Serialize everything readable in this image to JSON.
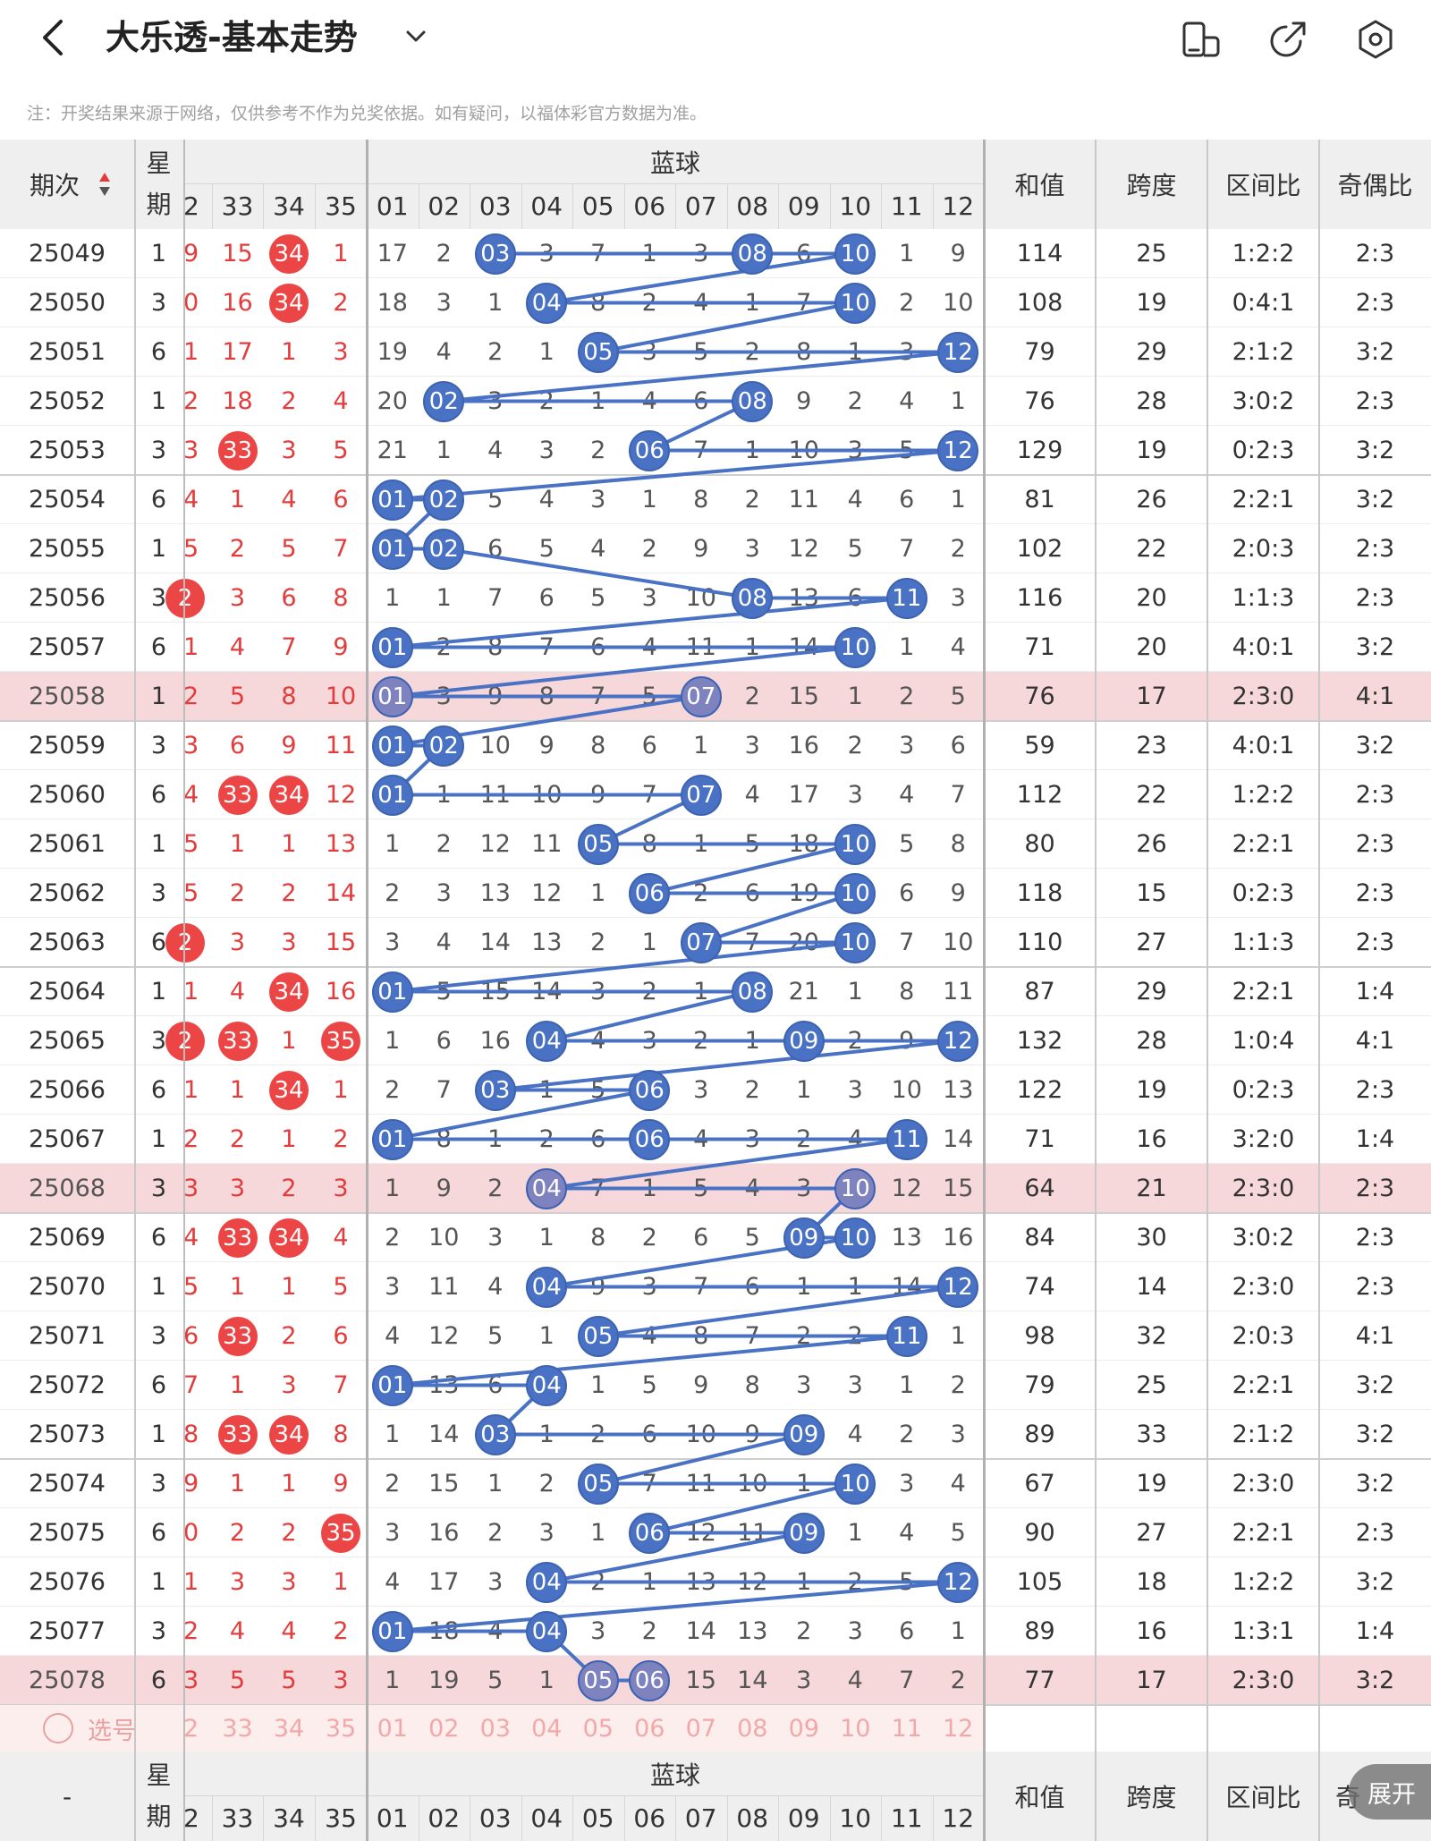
{
  "header": {
    "title": "大乐透-基本走势",
    "icons": [
      "back-icon",
      "chevron-down-icon",
      "phone-rotate-icon",
      "share-icon",
      "settings-icon"
    ]
  },
  "note": "注：开奖结果来源于网络，仅供参考不作为兑奖依据。如有疑问，以福体彩官方数据为准。",
  "columns": {
    "period": "期次",
    "week": "星期",
    "blue_group": "蓝球",
    "sum": "和值",
    "span": "跨度",
    "zone_ratio": "区间比",
    "odd_even": "奇偶比",
    "odd_even_partial": "奇",
    "red_numbers": [
      "2",
      "33",
      "34",
      "35"
    ],
    "blue_numbers": [
      "01",
      "02",
      "03",
      "04",
      "05",
      "06",
      "07",
      "08",
      "09",
      "10",
      "11",
      "12"
    ]
  },
  "rows": [
    {
      "period": "25049",
      "week": "1",
      "red": [
        "9",
        "15",
        "34",
        "1"
      ],
      "blue": [
        "17",
        "2",
        "03",
        "3",
        "7",
        "1",
        "3",
        "08",
        "6",
        "10",
        "1",
        "9"
      ],
      "sum": "114",
      "span": "25",
      "zone": "1:2:2",
      "oe": "2:3"
    },
    {
      "period": "25050",
      "week": "3",
      "red": [
        "0",
        "16",
        "34",
        "2"
      ],
      "blue": [
        "18",
        "3",
        "1",
        "04",
        "8",
        "2",
        "4",
        "1",
        "7",
        "10",
        "2",
        "10"
      ],
      "sum": "108",
      "span": "19",
      "zone": "0:4:1",
      "oe": "2:3"
    },
    {
      "period": "25051",
      "week": "6",
      "red": [
        "1",
        "17",
        "1",
        "3"
      ],
      "blue": [
        "19",
        "4",
        "2",
        "1",
        "05",
        "3",
        "5",
        "2",
        "8",
        "1",
        "3",
        "12"
      ],
      "sum": "79",
      "span": "29",
      "zone": "2:1:2",
      "oe": "3:2"
    },
    {
      "period": "25052",
      "week": "1",
      "red": [
        "2",
        "18",
        "2",
        "4"
      ],
      "blue": [
        "20",
        "02",
        "3",
        "2",
        "1",
        "4",
        "6",
        "08",
        "9",
        "2",
        "4",
        "1"
      ],
      "sum": "76",
      "span": "28",
      "zone": "3:0:2",
      "oe": "2:3"
    },
    {
      "period": "25053",
      "week": "3",
      "red": [
        "3",
        "33",
        "3",
        "5"
      ],
      "blue": [
        "21",
        "1",
        "4",
        "3",
        "2",
        "06",
        "7",
        "1",
        "10",
        "3",
        "5",
        "12"
      ],
      "sum": "129",
      "span": "19",
      "zone": "0:2:3",
      "oe": "3:2"
    },
    {
      "period": "25054",
      "week": "6",
      "red": [
        "4",
        "1",
        "4",
        "6"
      ],
      "blue": [
        "01",
        "02",
        "5",
        "4",
        "3",
        "1",
        "8",
        "2",
        "11",
        "4",
        "6",
        "1"
      ],
      "sum": "81",
      "span": "26",
      "zone": "2:2:1",
      "oe": "3:2"
    },
    {
      "period": "25055",
      "week": "1",
      "red": [
        "5",
        "2",
        "5",
        "7"
      ],
      "blue": [
        "01",
        "02",
        "6",
        "5",
        "4",
        "2",
        "9",
        "3",
        "12",
        "5",
        "7",
        "2"
      ],
      "sum": "102",
      "span": "22",
      "zone": "2:0:3",
      "oe": "2:3"
    },
    {
      "period": "25056",
      "week": "3",
      "red": [
        "2",
        "3",
        "6",
        "8"
      ],
      "blue": [
        "1",
        "1",
        "7",
        "6",
        "5",
        "3",
        "10",
        "08",
        "13",
        "6",
        "11",
        "3"
      ],
      "sum": "116",
      "span": "20",
      "zone": "1:1:3",
      "oe": "2:3"
    },
    {
      "period": "25057",
      "week": "6",
      "red": [
        "1",
        "4",
        "7",
        "9"
      ],
      "blue": [
        "01",
        "2",
        "8",
        "7",
        "6",
        "4",
        "11",
        "1",
        "14",
        "10",
        "1",
        "4"
      ],
      "sum": "71",
      "span": "20",
      "zone": "4:0:1",
      "oe": "3:2"
    },
    {
      "period": "25058",
      "week": "1",
      "red": [
        "2",
        "5",
        "8",
        "10"
      ],
      "blue": [
        "01",
        "3",
        "9",
        "8",
        "7",
        "5",
        "07",
        "2",
        "15",
        "1",
        "2",
        "5"
      ],
      "sum": "76",
      "span": "17",
      "zone": "2:3:0",
      "oe": "4:1"
    },
    {
      "period": "25059",
      "week": "3",
      "red": [
        "3",
        "6",
        "9",
        "11"
      ],
      "blue": [
        "01",
        "02",
        "10",
        "9",
        "8",
        "6",
        "1",
        "3",
        "16",
        "2",
        "3",
        "6"
      ],
      "sum": "59",
      "span": "23",
      "zone": "4:0:1",
      "oe": "3:2"
    },
    {
      "period": "25060",
      "week": "6",
      "red": [
        "4",
        "33",
        "34",
        "12"
      ],
      "blue": [
        "01",
        "1",
        "11",
        "10",
        "9",
        "7",
        "07",
        "4",
        "17",
        "3",
        "4",
        "7"
      ],
      "sum": "112",
      "span": "22",
      "zone": "1:2:2",
      "oe": "2:3"
    },
    {
      "period": "25061",
      "week": "1",
      "red": [
        "5",
        "1",
        "1",
        "13"
      ],
      "blue": [
        "1",
        "2",
        "12",
        "11",
        "05",
        "8",
        "1",
        "5",
        "18",
        "10",
        "5",
        "8"
      ],
      "sum": "80",
      "span": "26",
      "zone": "2:2:1",
      "oe": "2:3"
    },
    {
      "period": "25062",
      "week": "3",
      "red": [
        "5",
        "2",
        "2",
        "14"
      ],
      "blue": [
        "2",
        "3",
        "13",
        "12",
        "1",
        "06",
        "2",
        "6",
        "19",
        "10",
        "6",
        "9"
      ],
      "sum": "118",
      "span": "15",
      "zone": "0:2:3",
      "oe": "2:3"
    },
    {
      "period": "25063",
      "week": "6",
      "red": [
        "2",
        "3",
        "3",
        "15"
      ],
      "blue": [
        "3",
        "4",
        "14",
        "13",
        "2",
        "1",
        "07",
        "7",
        "20",
        "10",
        "7",
        "10"
      ],
      "sum": "110",
      "span": "27",
      "zone": "1:1:3",
      "oe": "2:3"
    },
    {
      "period": "25064",
      "week": "1",
      "red": [
        "1",
        "4",
        "34",
        "16"
      ],
      "blue": [
        "01",
        "5",
        "15",
        "14",
        "3",
        "2",
        "1",
        "08",
        "21",
        "1",
        "8",
        "11"
      ],
      "sum": "87",
      "span": "29",
      "zone": "2:2:1",
      "oe": "1:4"
    },
    {
      "period": "25065",
      "week": "3",
      "red": [
        "2",
        "33",
        "1",
        "35"
      ],
      "blue": [
        "1",
        "6",
        "16",
        "04",
        "4",
        "3",
        "2",
        "1",
        "09",
        "2",
        "9",
        "12"
      ],
      "sum": "132",
      "span": "28",
      "zone": "1:0:4",
      "oe": "4:1"
    },
    {
      "period": "25066",
      "week": "6",
      "red": [
        "1",
        "1",
        "34",
        "1"
      ],
      "blue": [
        "2",
        "7",
        "03",
        "1",
        "5",
        "06",
        "3",
        "2",
        "1",
        "3",
        "10",
        "13"
      ],
      "sum": "122",
      "span": "19",
      "zone": "0:2:3",
      "oe": "2:3"
    },
    {
      "period": "25067",
      "week": "1",
      "red": [
        "2",
        "2",
        "1",
        "2"
      ],
      "blue": [
        "01",
        "8",
        "1",
        "2",
        "6",
        "06",
        "4",
        "3",
        "2",
        "4",
        "11",
        "14"
      ],
      "sum": "71",
      "span": "16",
      "zone": "3:2:0",
      "oe": "1:4"
    },
    {
      "period": "25068",
      "week": "3",
      "red": [
        "3",
        "3",
        "2",
        "3"
      ],
      "blue": [
        "1",
        "9",
        "2",
        "04",
        "7",
        "1",
        "5",
        "4",
        "3",
        "10",
        "12",
        "15"
      ],
      "sum": "64",
      "span": "21",
      "zone": "2:3:0",
      "oe": "2:3"
    },
    {
      "period": "25069",
      "week": "6",
      "red": [
        "4",
        "33",
        "34",
        "4"
      ],
      "blue": [
        "2",
        "10",
        "3",
        "1",
        "8",
        "2",
        "6",
        "5",
        "09",
        "10",
        "13",
        "16"
      ],
      "sum": "84",
      "span": "30",
      "zone": "3:0:2",
      "oe": "2:3"
    },
    {
      "period": "25070",
      "week": "1",
      "red": [
        "5",
        "1",
        "1",
        "5"
      ],
      "blue": [
        "3",
        "11",
        "4",
        "04",
        "9",
        "3",
        "7",
        "6",
        "1",
        "1",
        "14",
        "12"
      ],
      "sum": "74",
      "span": "14",
      "zone": "2:3:0",
      "oe": "2:3"
    },
    {
      "period": "25071",
      "week": "3",
      "red": [
        "6",
        "33",
        "2",
        "6"
      ],
      "blue": [
        "4",
        "12",
        "5",
        "1",
        "05",
        "4",
        "8",
        "7",
        "2",
        "2",
        "11",
        "1"
      ],
      "sum": "98",
      "span": "32",
      "zone": "2:0:3",
      "oe": "4:1"
    },
    {
      "period": "25072",
      "week": "6",
      "red": [
        "7",
        "1",
        "3",
        "7"
      ],
      "blue": [
        "01",
        "13",
        "6",
        "04",
        "1",
        "5",
        "9",
        "8",
        "3",
        "3",
        "1",
        "2"
      ],
      "sum": "79",
      "span": "25",
      "zone": "2:2:1",
      "oe": "3:2"
    },
    {
      "period": "25073",
      "week": "1",
      "red": [
        "8",
        "33",
        "34",
        "8"
      ],
      "blue": [
        "1",
        "14",
        "03",
        "1",
        "2",
        "6",
        "10",
        "9",
        "09",
        "4",
        "2",
        "3"
      ],
      "sum": "89",
      "span": "33",
      "zone": "2:1:2",
      "oe": "3:2"
    },
    {
      "period": "25074",
      "week": "3",
      "red": [
        "9",
        "1",
        "1",
        "9"
      ],
      "blue": [
        "2",
        "15",
        "1",
        "2",
        "05",
        "7",
        "11",
        "10",
        "1",
        "10",
        "3",
        "4"
      ],
      "sum": "67",
      "span": "19",
      "zone": "2:3:0",
      "oe": "3:2"
    },
    {
      "period": "25075",
      "week": "6",
      "red": [
        "0",
        "2",
        "2",
        "35"
      ],
      "blue": [
        "3",
        "16",
        "2",
        "3",
        "1",
        "06",
        "12",
        "11",
        "09",
        "1",
        "4",
        "5"
      ],
      "sum": "90",
      "span": "27",
      "zone": "2:2:1",
      "oe": "2:3"
    },
    {
      "period": "25076",
      "week": "1",
      "red": [
        "1",
        "3",
        "3",
        "1"
      ],
      "blue": [
        "4",
        "17",
        "3",
        "04",
        "2",
        "1",
        "13",
        "12",
        "1",
        "2",
        "5",
        "12"
      ],
      "sum": "105",
      "span": "18",
      "zone": "1:2:2",
      "oe": "3:2"
    },
    {
      "period": "25077",
      "week": "3",
      "red": [
        "2",
        "4",
        "4",
        "2"
      ],
      "blue": [
        "01",
        "18",
        "4",
        "04",
        "3",
        "2",
        "14",
        "13",
        "2",
        "3",
        "6",
        "1"
      ],
      "sum": "89",
      "span": "16",
      "zone": "1:3:1",
      "oe": "1:4"
    },
    {
      "period": "25078",
      "week": "6",
      "red": [
        "3",
        "5",
        "5",
        "3"
      ],
      "blue": [
        "1",
        "19",
        "5",
        "1",
        "05",
        "06",
        "15",
        "14",
        "3",
        "4",
        "7",
        "2"
      ],
      "sum": "77",
      "span": "17",
      "zone": "2:3:0",
      "oe": "3:2"
    }
  ],
  "red_hits": [
    [
      0,
      2
    ],
    [
      1,
      2
    ],
    [
      4,
      1
    ],
    [
      7,
      0
    ],
    [
      11,
      1
    ],
    [
      11,
      2
    ],
    [
      14,
      0
    ],
    [
      15,
      2
    ],
    [
      16,
      0
    ],
    [
      16,
      1
    ],
    [
      16,
      3
    ],
    [
      17,
      2
    ],
    [
      20,
      1
    ],
    [
      20,
      2
    ],
    [
      22,
      1
    ],
    [
      24,
      1
    ],
    [
      24,
      2
    ],
    [
      26,
      3
    ]
  ],
  "highlight_rows": [
    9,
    19,
    29
  ],
  "pick": {
    "label": "选号",
    "red": [
      "2",
      "33",
      "34",
      "35"
    ],
    "blue": [
      "01",
      "02",
      "03",
      "04",
      "05",
      "06",
      "07",
      "08",
      "09",
      "10",
      "11",
      "12"
    ]
  },
  "footer_period_placeholder": "-",
  "expand_label": "展开"
}
